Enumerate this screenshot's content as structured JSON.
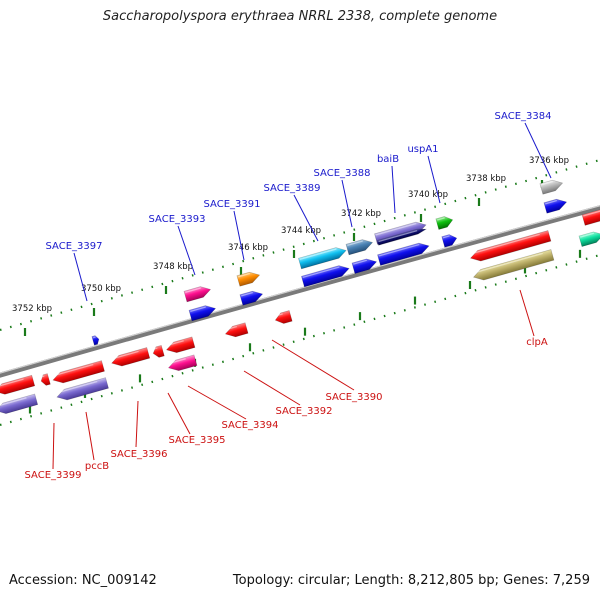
{
  "title": "Saccharopolyspora erythraea NRRL 2338, complete genome",
  "footer": {
    "accession": "Accession: NC_009142",
    "topology": "Topology: circular; Length: 8,212,805 bp; Genes: 7,259"
  },
  "ticks": [
    "3736 kbp",
    "3738 kbp",
    "3740 kbp",
    "3742 kbp",
    "3744 kbp",
    "3746 kbp",
    "3748 kbp",
    "3750 kbp",
    "3752 kbp"
  ],
  "forward_genes": [
    "SACE_3384",
    "uspA1",
    "baiB",
    "SACE_3388",
    "SACE_3389",
    "SACE_3391",
    "SACE_3393",
    "SACE_3397"
  ],
  "reverse_genes": [
    "clpA",
    "SACE_3390",
    "SACE_3392",
    "SACE_3394",
    "SACE_3395",
    "SACE_3396",
    "pccB",
    "SACE_3399"
  ],
  "colors": {
    "forward_label": "#1a1acc",
    "reverse_label": "#cc1111",
    "backbone": "#7a7a7a",
    "tick": "#1a7a1a"
  }
}
